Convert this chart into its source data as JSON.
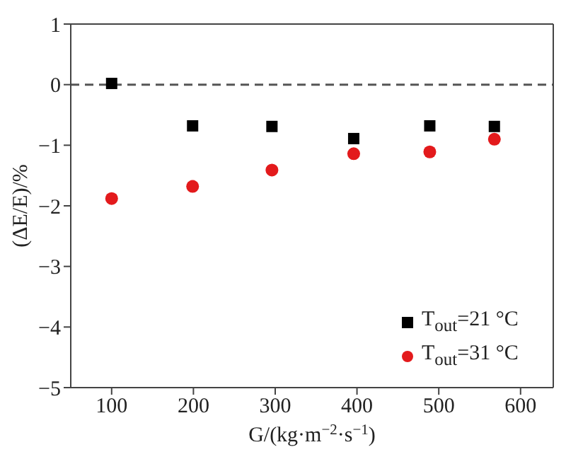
{
  "chart_data": {
    "type": "scatter",
    "xlabel": "G/(kg·m$^{−2}$·s$^{−1}$)",
    "ylabel": "(ΔE/E)/%",
    "xlim": [
      50,
      640
    ],
    "xticks": [
      100,
      200,
      300,
      400,
      500,
      600
    ],
    "ylim": [
      -5,
      1
    ],
    "yticks": [
      -5,
      -4,
      -3,
      -2,
      -1,
      0,
      1
    ],
    "series": [
      {
        "name": "T$_{out}$=21 °C",
        "color": "#000000",
        "marker": "square",
        "x": [
          100,
          199,
          296,
          396,
          489,
          568
        ],
        "values": [
          0.02,
          -0.68,
          -0.69,
          -0.89,
          -0.68,
          -0.69
        ]
      },
      {
        "name": "T$_{out}$=31 °C",
        "color": "#e31a1c",
        "marker": "circle",
        "x": [
          100,
          199,
          296,
          396,
          489,
          568
        ],
        "values": [
          -1.88,
          -1.68,
          -1.41,
          -1.14,
          -1.11,
          -0.9
        ]
      }
    ],
    "ref_lines": [
      {
        "axis": "y",
        "value": 0,
        "line_style": "dashed",
        "color": "#555555"
      }
    ],
    "legend": "bottom right",
    "grid": false
  }
}
